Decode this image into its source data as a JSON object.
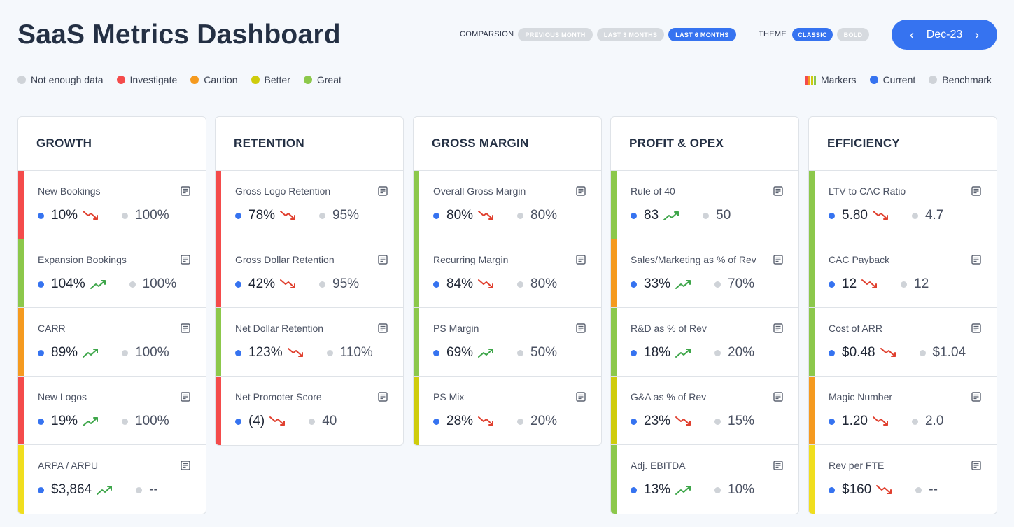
{
  "header": {
    "title": "SaaS Metrics Dashboard",
    "comparison_label": "COMPARSION",
    "comparison_options": [
      "PREVIOUS MONTH",
      "LAST 3 MONTHS",
      "LAST 6 MONTHS"
    ],
    "comparison_selected": "LAST 6 MONTHS",
    "theme_label": "THEME",
    "theme_options": [
      "CLASSIC",
      "BOLD"
    ],
    "theme_selected": "CLASSIC",
    "date": "Dec-23"
  },
  "colors": {
    "not_enough": "#cfd3d8",
    "investigate": "#f44b4b",
    "caution": "#f59a1f",
    "better": "#cfcc0c",
    "great": "#8cc84b",
    "current": "#3673f0",
    "benchmark": "#cfd3d8",
    "trend_up": "#3ea64a",
    "trend_down": "#e0402f"
  },
  "legend_left": [
    {
      "label": "Not enough data",
      "color": "#cfd3d8"
    },
    {
      "label": "Investigate",
      "color": "#f44b4b"
    },
    {
      "label": "Caution",
      "color": "#f59a1f"
    },
    {
      "label": "Better",
      "color": "#cfcc0c"
    },
    {
      "label": "Great",
      "color": "#8cc84b"
    }
  ],
  "legend_right": {
    "markers": "Markers",
    "current": "Current",
    "benchmark": "Benchmark"
  },
  "columns": [
    {
      "title": "GROWTH",
      "metrics": [
        {
          "name": "New Bookings",
          "current": "10%",
          "benchmark": "100%",
          "trend": "down",
          "status": "investigate"
        },
        {
          "name": "Expansion Bookings",
          "current": "104%",
          "benchmark": "100%",
          "trend": "up",
          "status": "great"
        },
        {
          "name": "CARR",
          "current": "89%",
          "benchmark": "100%",
          "trend": "up",
          "status": "caution"
        },
        {
          "name": "New Logos",
          "current": "19%",
          "benchmark": "100%",
          "trend": "up",
          "status": "investigate"
        },
        {
          "name": "ARPA / ARPU",
          "current": "$3,864",
          "benchmark": "--",
          "trend": "up",
          "status": "better_yellow"
        }
      ]
    },
    {
      "title": "RETENTION",
      "metrics": [
        {
          "name": "Gross Logo Retention",
          "current": "78%",
          "benchmark": "95%",
          "trend": "down",
          "status": "investigate"
        },
        {
          "name": "Gross Dollar Retention",
          "current": "42%",
          "benchmark": "95%",
          "trend": "down",
          "status": "investigate"
        },
        {
          "name": "Net Dollar Retention",
          "current": "123%",
          "benchmark": "110%",
          "trend": "down",
          "status": "great"
        },
        {
          "name": "Net Promoter Score",
          "current": "(4)",
          "benchmark": "40",
          "trend": "down",
          "status": "investigate"
        }
      ]
    },
    {
      "title": "GROSS MARGIN",
      "metrics": [
        {
          "name": "Overall Gross Margin",
          "current": "80%",
          "benchmark": "80%",
          "trend": "down",
          "status": "great"
        },
        {
          "name": "Recurring Margin",
          "current": "84%",
          "benchmark": "80%",
          "trend": "down",
          "status": "great"
        },
        {
          "name": "PS Margin",
          "current": "69%",
          "benchmark": "50%",
          "trend": "up",
          "status": "great"
        },
        {
          "name": "PS Mix",
          "current": "28%",
          "benchmark": "20%",
          "trend": "down",
          "status": "better"
        }
      ]
    },
    {
      "title": "PROFIT & OPEX",
      "metrics": [
        {
          "name": "Rule of 40",
          "current": "83",
          "benchmark": "50",
          "trend": "up",
          "status": "great"
        },
        {
          "name": "Sales/Marketing as % of Rev",
          "current": "33%",
          "benchmark": "70%",
          "trend": "up",
          "status": "caution"
        },
        {
          "name": "R&D as % of Rev",
          "current": "18%",
          "benchmark": "20%",
          "trend": "up",
          "status": "great"
        },
        {
          "name": "G&A as % of Rev",
          "current": "23%",
          "benchmark": "15%",
          "trend": "down",
          "status": "better"
        },
        {
          "name": "Adj. EBITDA",
          "current": "13%",
          "benchmark": "10%",
          "trend": "up",
          "status": "great"
        }
      ]
    },
    {
      "title": "EFFICIENCY",
      "metrics": [
        {
          "name": "LTV to CAC Ratio",
          "current": "5.80",
          "benchmark": "4.7",
          "trend": "down",
          "status": "great"
        },
        {
          "name": "CAC Payback",
          "current": "12",
          "benchmark": "12",
          "trend": "down",
          "status": "great"
        },
        {
          "name": "Cost of ARR",
          "current": "$0.48",
          "benchmark": "$1.04",
          "trend": "down",
          "status": "great"
        },
        {
          "name": "Magic Number",
          "current": "1.20",
          "benchmark": "2.0",
          "trend": "down",
          "status": "caution"
        },
        {
          "name": "Rev per FTE",
          "current": "$160",
          "benchmark": "--",
          "trend": "down",
          "status": "better_yellow"
        }
      ]
    }
  ]
}
